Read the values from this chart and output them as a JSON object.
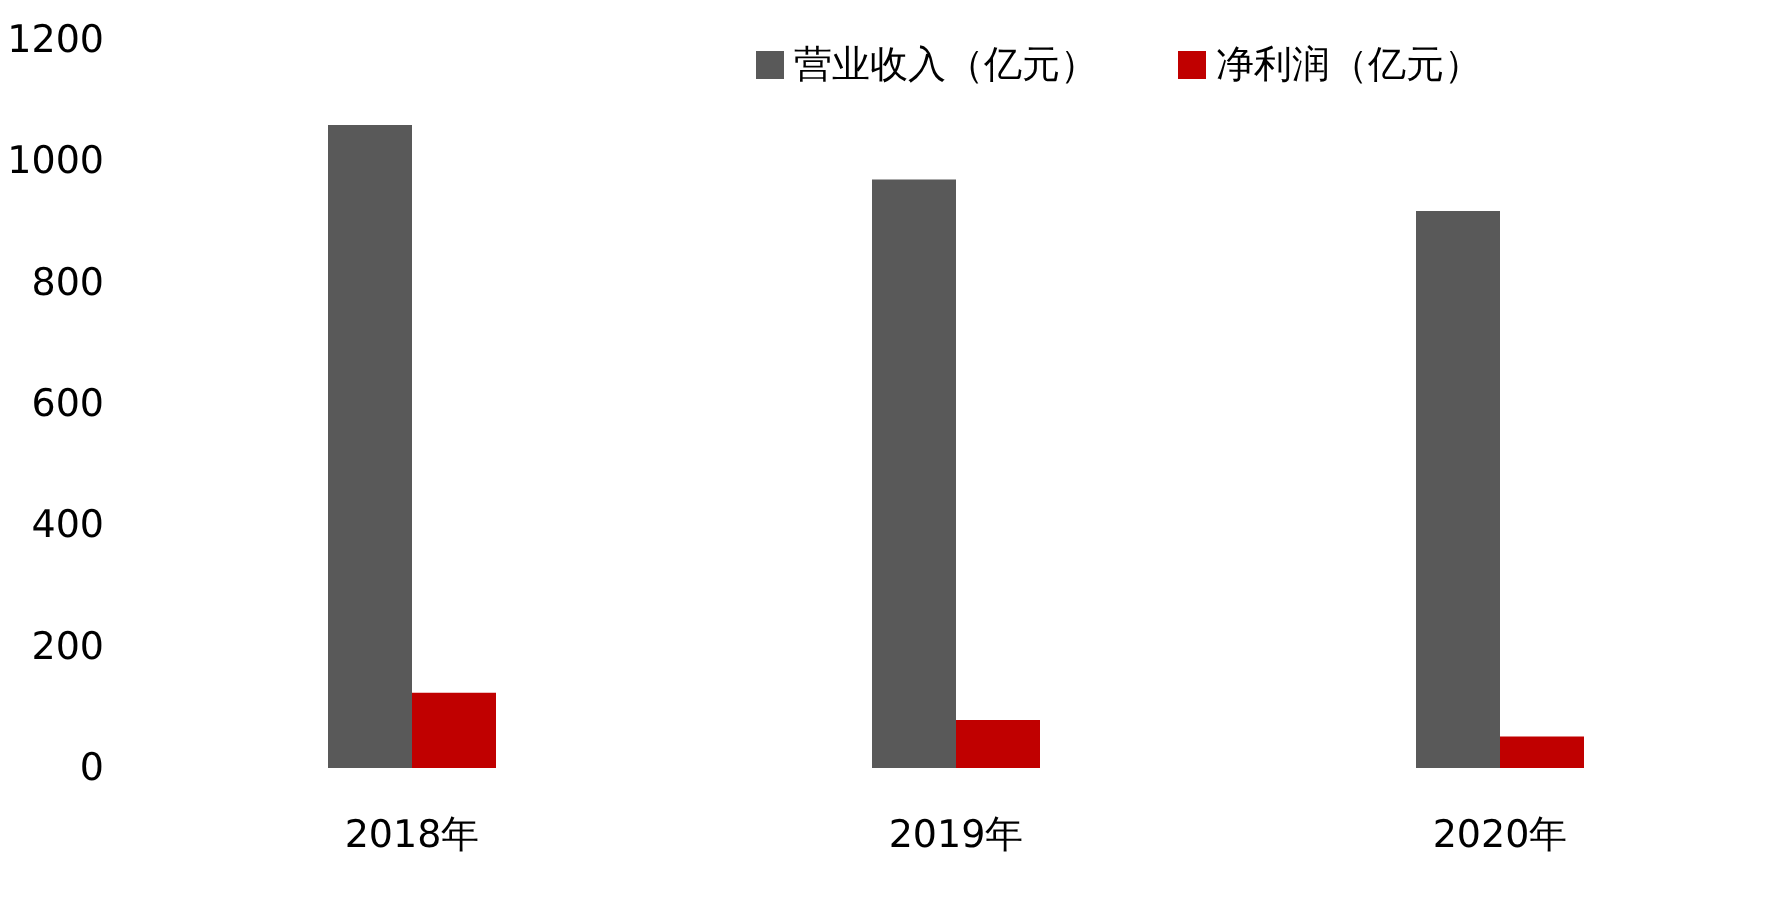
{
  "chart_data": {
    "type": "bar",
    "categories": [
      "2018年",
      "2019年",
      "2020年"
    ],
    "series": [
      {
        "name": "营业收入（亿元）",
        "color": "#595959",
        "values": [
          1060,
          970,
          918
        ]
      },
      {
        "name": "净利润（亿元）",
        "color": "#c00000",
        "values": [
          124,
          79,
          52
        ]
      }
    ],
    "ylim": [
      0,
      1200
    ],
    "yticks": [
      0,
      200,
      400,
      600,
      800,
      1000,
      1200
    ],
    "grid": false,
    "legend": "top right"
  }
}
